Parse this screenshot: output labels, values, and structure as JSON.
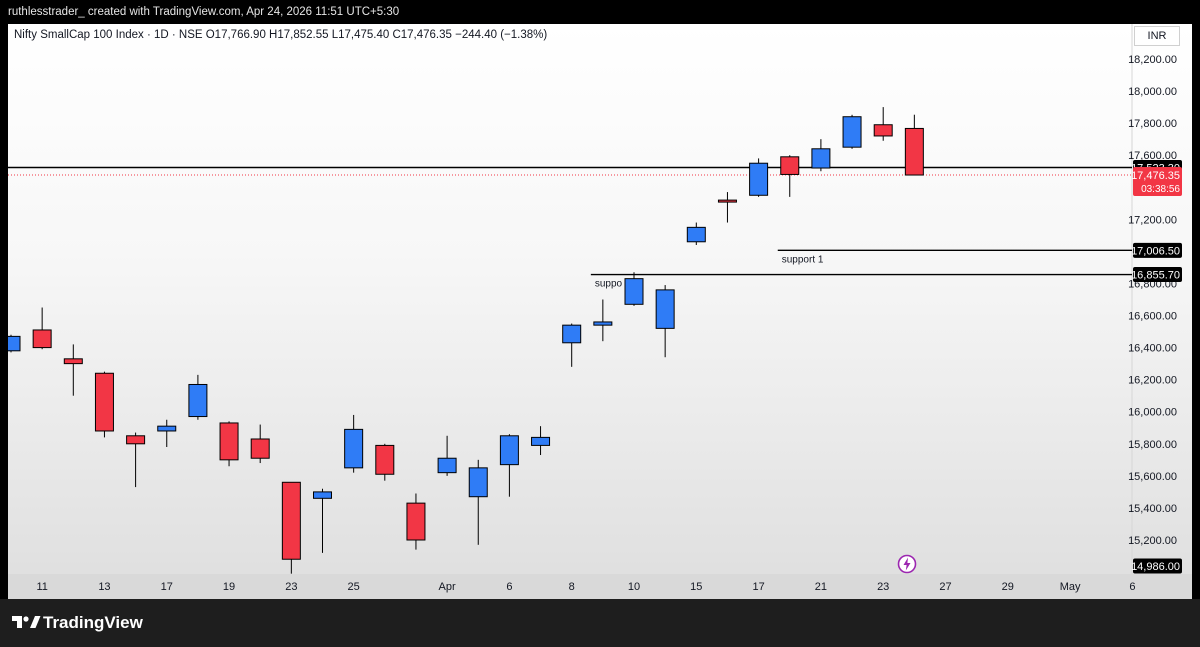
{
  "header": {
    "text": "ruthlesstrader_ created with TradingView.com, Apr 24, 2026 11:51 UTC+5:30"
  },
  "legend": {
    "text": "Nifty SmallCap 100 Index · 1D · NSE  O17,766.90  H17,852.55  L17,475.40  C17,476.35  −244.40 (−1.38%)"
  },
  "currency": "INR",
  "brand": "TradingView",
  "colors": {
    "up": "#2f7cf6",
    "down": "#f23645",
    "axis_label_bg": "#000000",
    "last_price_bg": "#f23645"
  },
  "icons": {
    "brand": "tradingview-logo-icon",
    "bolt": "lightning-icon"
  },
  "chart_data": {
    "type": "candlestick",
    "symbol": "Nifty SmallCap 100 Index",
    "interval": "1D",
    "exchange": "NSE",
    "currency": "INR",
    "ylim": [
      14986,
      18400
    ],
    "y_ticks": [
      {
        "value": 18200,
        "label": "18,200.00"
      },
      {
        "value": 18000,
        "label": "18,000.00"
      },
      {
        "value": 17800,
        "label": "17,800.00"
      },
      {
        "value": 17600,
        "label": "17,600.00"
      },
      {
        "value": 17200,
        "label": "17,200.00"
      },
      {
        "value": 16800,
        "label": "16,800.00"
      },
      {
        "value": 16600,
        "label": "16,600.00"
      },
      {
        "value": 16400,
        "label": "16,400.00"
      },
      {
        "value": 16200,
        "label": "16,200.00"
      },
      {
        "value": 16000,
        "label": "16,000.00"
      },
      {
        "value": 15800,
        "label": "15,800.00"
      },
      {
        "value": 15600,
        "label": "15,600.00"
      },
      {
        "value": 15400,
        "label": "15,400.00"
      },
      {
        "value": 15200,
        "label": "15,200.00"
      }
    ],
    "x_ticks": [
      {
        "slot": 1,
        "label": "11"
      },
      {
        "slot": 3,
        "label": "13"
      },
      {
        "slot": 5,
        "label": "17"
      },
      {
        "slot": 7,
        "label": "19"
      },
      {
        "slot": 9,
        "label": "23"
      },
      {
        "slot": 11,
        "label": "25"
      },
      {
        "slot": 14,
        "label": "Apr"
      },
      {
        "slot": 16,
        "label": "6"
      },
      {
        "slot": 18,
        "label": "8"
      },
      {
        "slot": 20,
        "label": "10"
      },
      {
        "slot": 22,
        "label": "15"
      },
      {
        "slot": 24,
        "label": "17"
      },
      {
        "slot": 26,
        "label": "21"
      },
      {
        "slot": 28,
        "label": "23"
      },
      {
        "slot": 30,
        "label": "27"
      },
      {
        "slot": 32,
        "label": "29"
      },
      {
        "slot": 34,
        "label": "May"
      },
      {
        "slot": 36,
        "label": "6"
      }
    ],
    "candles": [
      {
        "o": 16380,
        "h": 16480,
        "l": 16370,
        "c": 16470
      },
      {
        "o": 16510,
        "h": 16650,
        "l": 16390,
        "c": 16400
      },
      {
        "o": 16330,
        "h": 16420,
        "l": 16100,
        "c": 16300
      },
      {
        "o": 16240,
        "h": 16250,
        "l": 15840,
        "c": 15880
      },
      {
        "o": 15850,
        "h": 15870,
        "l": 15530,
        "c": 15800
      },
      {
        "o": 15880,
        "h": 15950,
        "l": 15780,
        "c": 15910
      },
      {
        "o": 15970,
        "h": 16230,
        "l": 15950,
        "c": 16170
      },
      {
        "o": 15930,
        "h": 15940,
        "l": 15660,
        "c": 15700
      },
      {
        "o": 15830,
        "h": 15920,
        "l": 15680,
        "c": 15710
      },
      {
        "o": 15560,
        "h": 15560,
        "l": 14990,
        "c": 15080
      },
      {
        "o": 15460,
        "h": 15520,
        "l": 15120,
        "c": 15500
      },
      {
        "o": 15650,
        "h": 15980,
        "l": 15620,
        "c": 15890
      },
      {
        "o": 15790,
        "h": 15800,
        "l": 15570,
        "c": 15610
      },
      {
        "o": 15430,
        "h": 15490,
        "l": 15140,
        "c": 15200
      },
      {
        "o": 15620,
        "h": 15850,
        "l": 15600,
        "c": 15710
      },
      {
        "o": 15470,
        "h": 15700,
        "l": 15170,
        "c": 15650
      },
      {
        "o": 15670,
        "h": 15860,
        "l": 15470,
        "c": 15850
      },
      {
        "o": 15790,
        "h": 15910,
        "l": 15730,
        "c": 15840
      },
      {
        "o": 16430,
        "h": 16550,
        "l": 16280,
        "c": 16540
      },
      {
        "o": 16540,
        "h": 16700,
        "l": 16440,
        "c": 16560
      },
      {
        "o": 16670,
        "h": 16870,
        "l": 16660,
        "c": 16830
      },
      {
        "o": 16520,
        "h": 16790,
        "l": 16340,
        "c": 16760
      },
      {
        "o": 17060,
        "h": 17180,
        "l": 17040,
        "c": 17150
      },
      {
        "o": 17320,
        "h": 17370,
        "l": 17180,
        "c": 17310
      },
      {
        "o": 17350,
        "h": 17580,
        "l": 17340,
        "c": 17550
      },
      {
        "o": 17590,
        "h": 17600,
        "l": 17340,
        "c": 17480
      },
      {
        "o": 17520,
        "h": 17700,
        "l": 17500,
        "c": 17640
      },
      {
        "o": 17650,
        "h": 17852,
        "l": 17640,
        "c": 17840
      },
      {
        "o": 17790,
        "h": 17900,
        "l": 17690,
        "c": 17720
      },
      {
        "o": 17766.9,
        "h": 17852.55,
        "l": 17475.4,
        "c": 17476.35
      }
    ],
    "horizontal_lines": [
      {
        "value": 17523.3,
        "label": "17,523.30",
        "style": "solid",
        "span": "full"
      },
      {
        "value": 17006.5,
        "label": "17,006.50",
        "style": "solid",
        "span": "from-slot-25",
        "text": "support 1"
      },
      {
        "value": 16855.7,
        "label": "16,855.70",
        "style": "solid",
        "span": "from-slot-19",
        "text": "suppo"
      }
    ],
    "last_price": {
      "value": 17476.35,
      "label": "17,476.35",
      "countdown": "03:38:56"
    },
    "bottom_price_label": {
      "value": 14986,
      "label": "14,986.00"
    }
  }
}
